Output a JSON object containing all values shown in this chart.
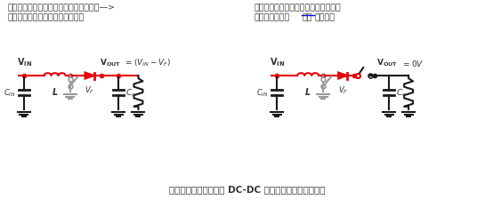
{
  "text_top_left_1": "即使开关停止工作，输出端在经由电感器—>",
  "text_top_left_2": "整流二极管的路径中也会产生电压",
  "text_top_right_1": "要消除负载电路中的漏电流等导致的电",
  "text_top_right_2a": "流消耗，输出端",
  "text_top_right_2b": "需要",
  "text_top_right_2c": "添加开关",
  "caption": "二极管整流方式升压型 DC-DC 转换器停止工作时的输出",
  "red": "#e8000a",
  "gray": "#999999",
  "black": "#1a1a1a",
  "dark": "#333333",
  "bg": "#ffffff"
}
